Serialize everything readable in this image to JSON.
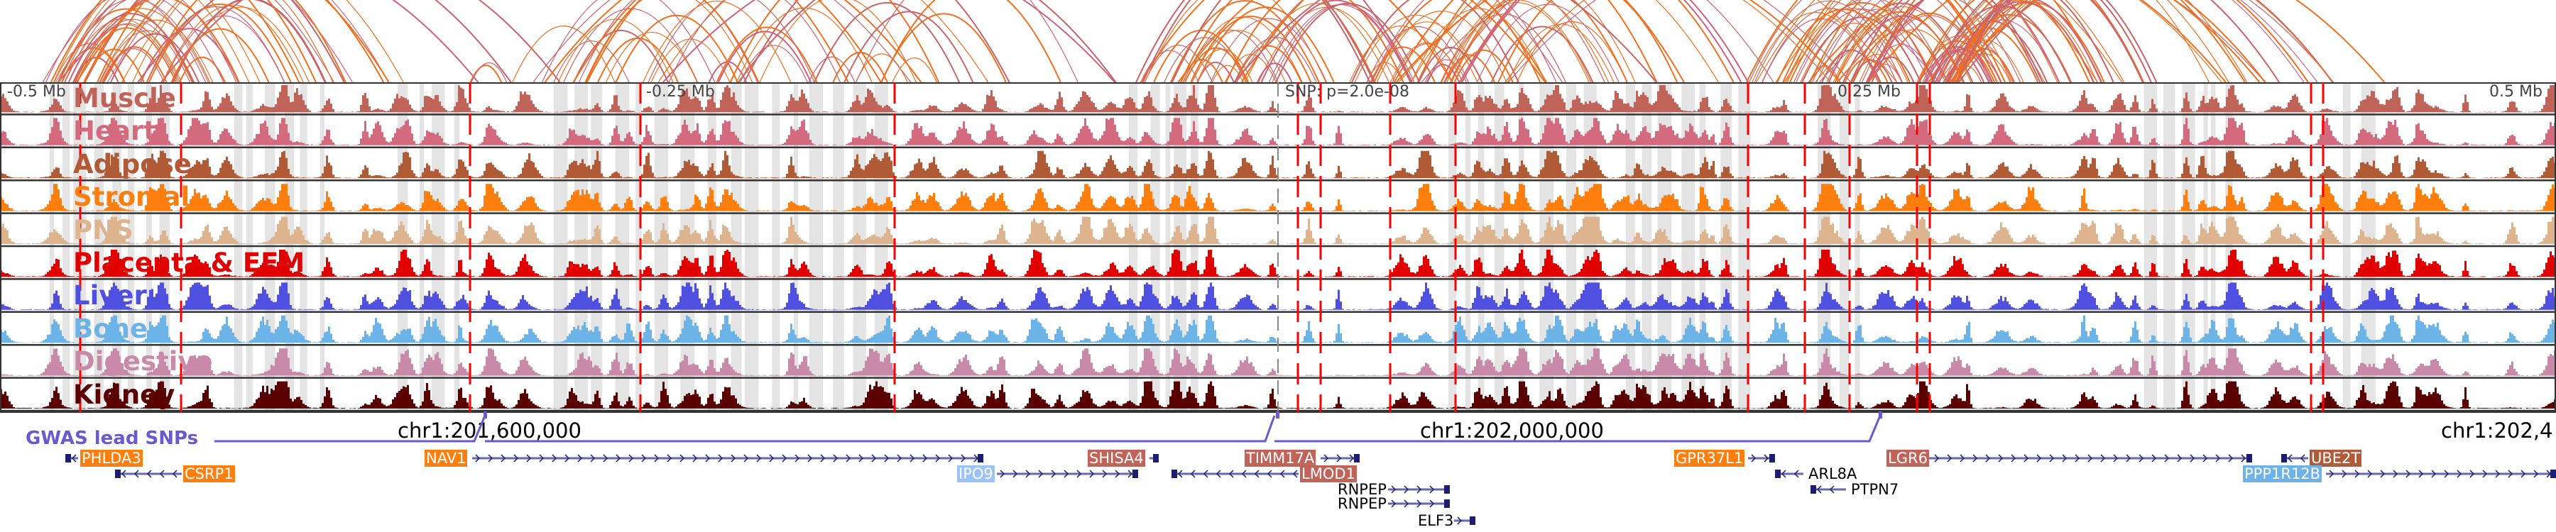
{
  "tracks": [
    {
      "label": "Muscle",
      "color": "#c0645a"
    },
    {
      "label": "Heart",
      "color": "#d46a7e"
    },
    {
      "label": "Adipose",
      "color": "#b05a36"
    },
    {
      "label": "Stromal",
      "color": "#ff7f0e"
    },
    {
      "label": "PNS",
      "color": "#deb48e"
    },
    {
      "label": "Placenta & EEM",
      "color": "#e00000"
    },
    {
      "label": "Liver",
      "color": "#5050e0"
    },
    {
      "label": "Bone",
      "color": "#6cb4e8"
    },
    {
      "label": "Digestive",
      "color": "#c88aa8"
    },
    {
      "label": "Kidney",
      "color": "#5a0000"
    }
  ],
  "axis": {
    "m05": "-0.5 Mb",
    "m025": "-0.25 Mb",
    "snp": "SNP: p=2.0e-08",
    "p025": "0.25 Mb",
    "p05": "0.5 Mb"
  },
  "coords": {
    "c1": "chr1:201,600,000",
    "c2": "chr1:202,000,000",
    "c3": "chr1:202,4"
  },
  "gwas": {
    "label": "GWAS lead SNPs",
    "color": "#6a5acd"
  },
  "genes": [
    {
      "name": "PHLDA3",
      "bg": "#ff7f0e",
      "fg": "#fff"
    },
    {
      "name": "CSRP1",
      "bg": "#ff7f0e",
      "fg": "#fff"
    },
    {
      "name": "NAV1",
      "bg": "#ff7f0e",
      "fg": "#fff"
    },
    {
      "name": "IPO9",
      "bg": "#9cc3f5",
      "fg": "#fff"
    },
    {
      "name": "SHISA4",
      "bg": "#c0645a",
      "fg": "#fff"
    },
    {
      "name": "TIMM17A",
      "bg": "#c0645a",
      "fg": "#fff"
    },
    {
      "name": "LMOD1",
      "bg": "#c0645a",
      "fg": "#fff"
    },
    {
      "name": "RNPEP",
      "bg": "",
      "fg": "#000"
    },
    {
      "name": "RNPEP",
      "bg": "",
      "fg": "#000"
    },
    {
      "name": "ELF3",
      "bg": "",
      "fg": "#000"
    },
    {
      "name": "GPR37L1",
      "bg": "#ff7f0e",
      "fg": "#fff"
    },
    {
      "name": "ARL8A",
      "bg": "",
      "fg": "#000"
    },
    {
      "name": "PTPN7",
      "bg": "",
      "fg": "#000"
    },
    {
      "name": "LGR6",
      "bg": "#c0645a",
      "fg": "#fff"
    },
    {
      "name": "UBE2T",
      "bg": "#b05a3a",
      "fg": "#fff"
    },
    {
      "name": "PPP1R12B",
      "bg": "#6db3e8",
      "fg": "#fff"
    }
  ]
}
